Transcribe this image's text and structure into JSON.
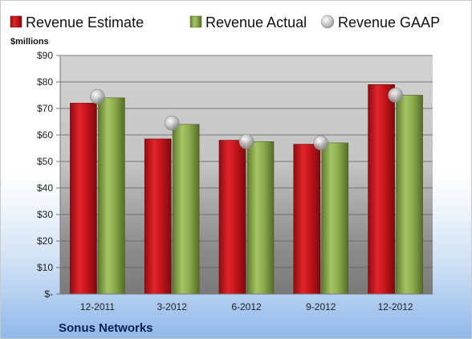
{
  "chart_data": {
    "type": "bar",
    "categories": [
      "12-2011",
      "3-2012",
      "6-2012",
      "9-2012",
      "12-2012"
    ],
    "series": [
      {
        "name": "Revenue Estimate",
        "kind": "bar",
        "values": [
          72,
          58.5,
          58,
          56.5,
          79
        ]
      },
      {
        "name": "Revenue Actual",
        "kind": "bar",
        "values": [
          74,
          64,
          57.5,
          57,
          75
        ]
      },
      {
        "name": "Revenue GAAP",
        "kind": "marker",
        "values": [
          74.5,
          64.5,
          57.5,
          57,
          75
        ]
      }
    ],
    "ylabel": "$millions",
    "ylim": [
      0,
      90
    ],
    "yticks": [
      0,
      10,
      20,
      30,
      40,
      50,
      60,
      70,
      80,
      90
    ],
    "ytick_labels": [
      "$-",
      "$10",
      "$20",
      "$30",
      "$40",
      "$50",
      "$60",
      "$70",
      "$80",
      "$90"
    ],
    "grid": true,
    "legend_position": "top",
    "company": "Sonus Networks",
    "colors": {
      "estimate": "#c8151b",
      "actual": "#8fae4f",
      "gaap": "#b9b9b9"
    }
  }
}
